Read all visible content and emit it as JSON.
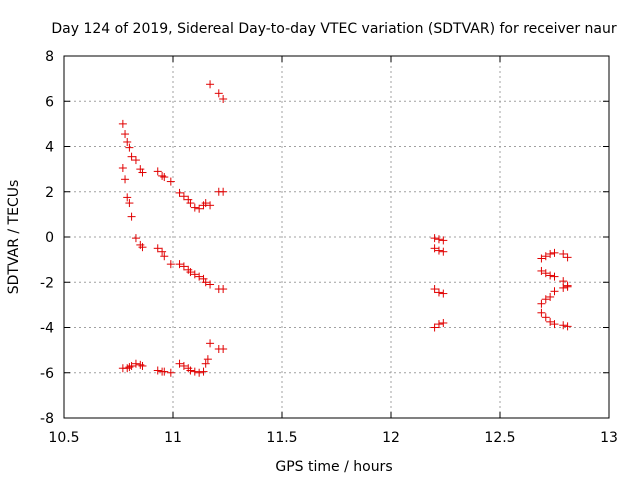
{
  "chart_data": {
    "type": "scatter",
    "title": "Day 124 of 2019, Sidereal Day-to-day VTEC variation (SDTVAR) for receiver naur",
    "xlabel": "GPS time / hours",
    "ylabel": "SDTVAR / TECUs",
    "xlim": [
      10.5,
      13
    ],
    "ylim": [
      -8,
      8
    ],
    "xticks": [
      "10.5",
      "11",
      "11.5",
      "12",
      "12.5",
      "13"
    ],
    "xtick_values": [
      10.5,
      11,
      11.5,
      12,
      12.5,
      13
    ],
    "yticks": [
      "8",
      "6",
      "4",
      "2",
      "0",
      "-2",
      "-4",
      "-6",
      "-8"
    ],
    "ytick_values": [
      8,
      6,
      4,
      2,
      0,
      -2,
      -4,
      -6,
      -8
    ],
    "grid": true,
    "marker": "+",
    "color": "#e00000",
    "series": [
      {
        "name": "SDTVAR",
        "points": [
          [
            10.77,
            5.0
          ],
          [
            10.78,
            4.55
          ],
          [
            10.79,
            4.2
          ],
          [
            10.8,
            3.95
          ],
          [
            10.81,
            3.55
          ],
          [
            10.83,
            3.4
          ],
          [
            10.85,
            3.0
          ],
          [
            10.86,
            2.85
          ],
          [
            10.93,
            2.9
          ],
          [
            10.95,
            2.7
          ],
          [
            10.96,
            2.65
          ],
          [
            10.99,
            2.45
          ],
          [
            11.03,
            1.95
          ],
          [
            11.05,
            1.8
          ],
          [
            11.07,
            1.65
          ],
          [
            11.08,
            1.5
          ],
          [
            11.1,
            1.3
          ],
          [
            11.12,
            1.25
          ],
          [
            11.14,
            1.4
          ],
          [
            11.15,
            1.5
          ],
          [
            11.17,
            1.4
          ],
          [
            11.21,
            2.0
          ],
          [
            11.23,
            2.0
          ],
          [
            10.77,
            3.05
          ],
          [
            10.78,
            2.55
          ],
          [
            10.79,
            1.75
          ],
          [
            10.8,
            1.5
          ],
          [
            10.81,
            0.9
          ],
          [
            11.17,
            6.75
          ],
          [
            11.21,
            6.35
          ],
          [
            11.23,
            6.1
          ],
          [
            10.83,
            -0.05
          ],
          [
            10.85,
            -0.35
          ],
          [
            10.86,
            -0.45
          ],
          [
            10.93,
            -0.5
          ],
          [
            10.95,
            -0.65
          ],
          [
            10.96,
            -0.85
          ],
          [
            10.99,
            -1.2
          ],
          [
            11.03,
            -1.2
          ],
          [
            11.05,
            -1.3
          ],
          [
            11.07,
            -1.45
          ],
          [
            11.08,
            -1.55
          ],
          [
            11.1,
            -1.65
          ],
          [
            11.12,
            -1.75
          ],
          [
            11.14,
            -1.85
          ],
          [
            11.15,
            -2.0
          ],
          [
            11.17,
            -2.1
          ],
          [
            11.21,
            -2.3
          ],
          [
            11.23,
            -2.3
          ],
          [
            10.77,
            -5.8
          ],
          [
            10.79,
            -5.8
          ],
          [
            10.8,
            -5.75
          ],
          [
            10.81,
            -5.7
          ],
          [
            10.83,
            -5.6
          ],
          [
            10.85,
            -5.65
          ],
          [
            10.86,
            -5.7
          ],
          [
            10.93,
            -5.9
          ],
          [
            10.95,
            -5.95
          ],
          [
            10.96,
            -5.95
          ],
          [
            10.99,
            -6.0
          ],
          [
            11.03,
            -5.6
          ],
          [
            11.05,
            -5.7
          ],
          [
            11.07,
            -5.8
          ],
          [
            11.08,
            -5.9
          ],
          [
            11.1,
            -5.95
          ],
          [
            11.12,
            -6.0
          ],
          [
            11.14,
            -5.95
          ],
          [
            11.15,
            -5.6
          ],
          [
            11.16,
            -5.4
          ],
          [
            11.17,
            -4.7
          ],
          [
            11.21,
            -4.95
          ],
          [
            11.23,
            -4.95
          ],
          [
            12.2,
            -0.05
          ],
          [
            12.22,
            -0.1
          ],
          [
            12.24,
            -0.15
          ],
          [
            12.2,
            -0.5
          ],
          [
            12.22,
            -0.6
          ],
          [
            12.24,
            -0.65
          ],
          [
            12.2,
            -2.3
          ],
          [
            12.22,
            -2.45
          ],
          [
            12.24,
            -2.5
          ],
          [
            12.2,
            -4.0
          ],
          [
            12.22,
            -3.85
          ],
          [
            12.24,
            -3.8
          ],
          [
            12.69,
            -0.95
          ],
          [
            12.71,
            -0.85
          ],
          [
            12.73,
            -0.75
          ],
          [
            12.75,
            -0.7
          ],
          [
            12.79,
            -0.75
          ],
          [
            12.81,
            -0.9
          ],
          [
            12.69,
            -1.5
          ],
          [
            12.71,
            -1.6
          ],
          [
            12.73,
            -1.7
          ],
          [
            12.75,
            -1.75
          ],
          [
            12.79,
            -1.95
          ],
          [
            12.81,
            -2.15
          ],
          [
            12.69,
            -2.95
          ],
          [
            12.71,
            -2.75
          ],
          [
            12.73,
            -2.65
          ],
          [
            12.75,
            -2.4
          ],
          [
            12.79,
            -2.25
          ],
          [
            12.81,
            -2.2
          ],
          [
            12.69,
            -3.35
          ],
          [
            12.71,
            -3.55
          ],
          [
            12.73,
            -3.75
          ],
          [
            12.75,
            -3.85
          ],
          [
            12.79,
            -3.9
          ],
          [
            12.81,
            -3.95
          ]
        ]
      }
    ]
  }
}
